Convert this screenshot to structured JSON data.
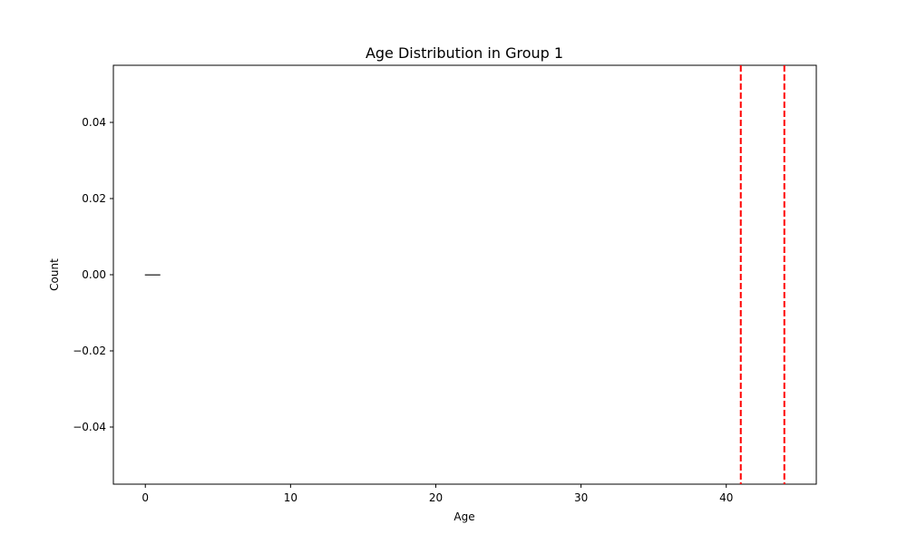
{
  "chart_data": {
    "type": "bar",
    "title": "Age Distribution in Group 1",
    "xlabel": "Age",
    "ylabel": "Count",
    "xlim": [
      -2.2,
      46.2
    ],
    "ylim": [
      -0.055,
      0.055
    ],
    "x_ticks": [
      0,
      10,
      20,
      30,
      40
    ],
    "y_ticks": [
      -0.04,
      -0.02,
      0.0,
      0.02,
      0.04
    ],
    "y_tick_labels": [
      "−0.04",
      "−0.02",
      "0.00",
      "0.02",
      "0.04"
    ],
    "bars": [
      {
        "x0": 0,
        "x1": 1,
        "value": 0
      }
    ],
    "vlines": [
      {
        "x": 41,
        "color": "#ff0000",
        "style": "dashed"
      },
      {
        "x": 44,
        "color": "#ff0000",
        "style": "dashed"
      }
    ],
    "grid": false,
    "legend": "none",
    "colors": {
      "axes": "#000000",
      "bar_edge": "#444444",
      "vline": "#ff0000"
    }
  }
}
